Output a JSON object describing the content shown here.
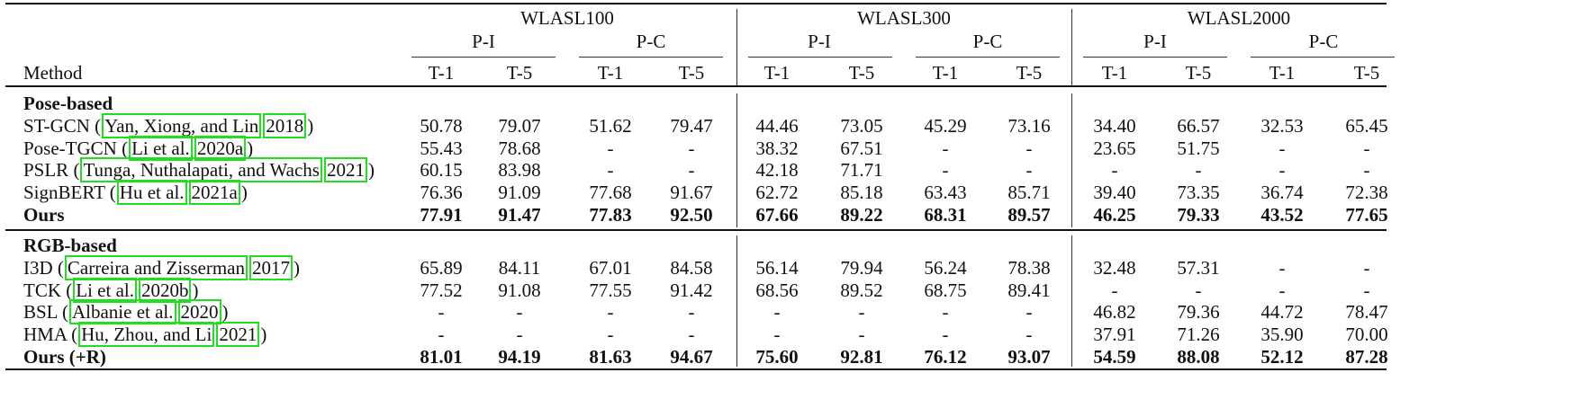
{
  "header": {
    "groups": [
      "WLASL100",
      "WLASL300",
      "WLASL2000"
    ],
    "subgroups": [
      "P-I",
      "P-C"
    ],
    "metrics": [
      "T-1",
      "T-5"
    ],
    "method_label": "Method"
  },
  "sections": [
    {
      "title": "Pose-based",
      "rows": [
        {
          "prefix": "ST-GCN (",
          "cites": [
            "Yan, Xiong, and Lin",
            "2018"
          ],
          "suffix": ")",
          "bold": false,
          "values": [
            "50.78",
            "79.07",
            "51.62",
            "79.47",
            "44.46",
            "73.05",
            "45.29",
            "73.16",
            "34.40",
            "66.57",
            "32.53",
            "65.45"
          ]
        },
        {
          "prefix": "Pose-TGCN (",
          "cites": [
            "Li et al.",
            "2020a"
          ],
          "suffix": ")",
          "bold": false,
          "values": [
            "55.43",
            "78.68",
            "-",
            "-",
            "38.32",
            "67.51",
            "-",
            "-",
            "23.65",
            "51.75",
            "-",
            "-"
          ]
        },
        {
          "prefix": "PSLR (",
          "cites": [
            "Tunga, Nuthalapati, and Wachs",
            "2021"
          ],
          "suffix": ")",
          "bold": false,
          "values": [
            "60.15",
            "83.98",
            "-",
            "-",
            "42.18",
            "71.71",
            "-",
            "-",
            "-",
            "-",
            "-",
            "-"
          ]
        },
        {
          "prefix": "SignBERT (",
          "cites": [
            "Hu et al.",
            "2021a"
          ],
          "suffix": ")",
          "bold": false,
          "values": [
            "76.36",
            "91.09",
            "77.68",
            "91.67",
            "62.72",
            "85.18",
            "63.43",
            "85.71",
            "39.40",
            "73.35",
            "36.74",
            "72.38"
          ]
        },
        {
          "prefix": "Ours",
          "cites": [],
          "suffix": "",
          "bold": true,
          "values": [
            "77.91",
            "91.47",
            "77.83",
            "92.50",
            "67.66",
            "89.22",
            "68.31",
            "89.57",
            "46.25",
            "79.33",
            "43.52",
            "77.65"
          ]
        }
      ]
    },
    {
      "title": "RGB-based",
      "rows": [
        {
          "prefix": "I3D (",
          "cites": [
            "Carreira and Zisserman",
            "2017"
          ],
          "suffix": ")",
          "bold": false,
          "values": [
            "65.89",
            "84.11",
            "67.01",
            "84.58",
            "56.14",
            "79.94",
            "56.24",
            "78.38",
            "32.48",
            "57.31",
            "-",
            "-"
          ]
        },
        {
          "prefix": "TCK (",
          "cites": [
            "Li et al.",
            "2020b"
          ],
          "suffix": ")",
          "bold": false,
          "values": [
            "77.52",
            "91.08",
            "77.55",
            "91.42",
            "68.56",
            "89.52",
            "68.75",
            "89.41",
            "-",
            "-",
            "-",
            "-"
          ]
        },
        {
          "prefix": "BSL (",
          "cites": [
            "Albanie et al.",
            "2020"
          ],
          "suffix": ")",
          "bold": false,
          "values": [
            "-",
            "-",
            "-",
            "-",
            "-",
            "-",
            "-",
            "-",
            "46.82",
            "79.36",
            "44.72",
            "78.47"
          ]
        },
        {
          "prefix": "HMA (",
          "cites": [
            "Hu, Zhou, and Li",
            "2021"
          ],
          "suffix": ")",
          "bold": false,
          "values": [
            "-",
            "-",
            "-",
            "-",
            "-",
            "-",
            "-",
            "-",
            "37.91",
            "71.26",
            "35.90",
            "70.00"
          ]
        },
        {
          "prefix": "Ours (+R)",
          "cites": [],
          "suffix": "",
          "bold": true,
          "values": [
            "81.01",
            "94.19",
            "81.63",
            "94.67",
            "75.60",
            "92.81",
            "76.12",
            "93.07",
            "54.59",
            "88.08",
            "52.12",
            "87.28"
          ]
        }
      ]
    }
  ]
}
